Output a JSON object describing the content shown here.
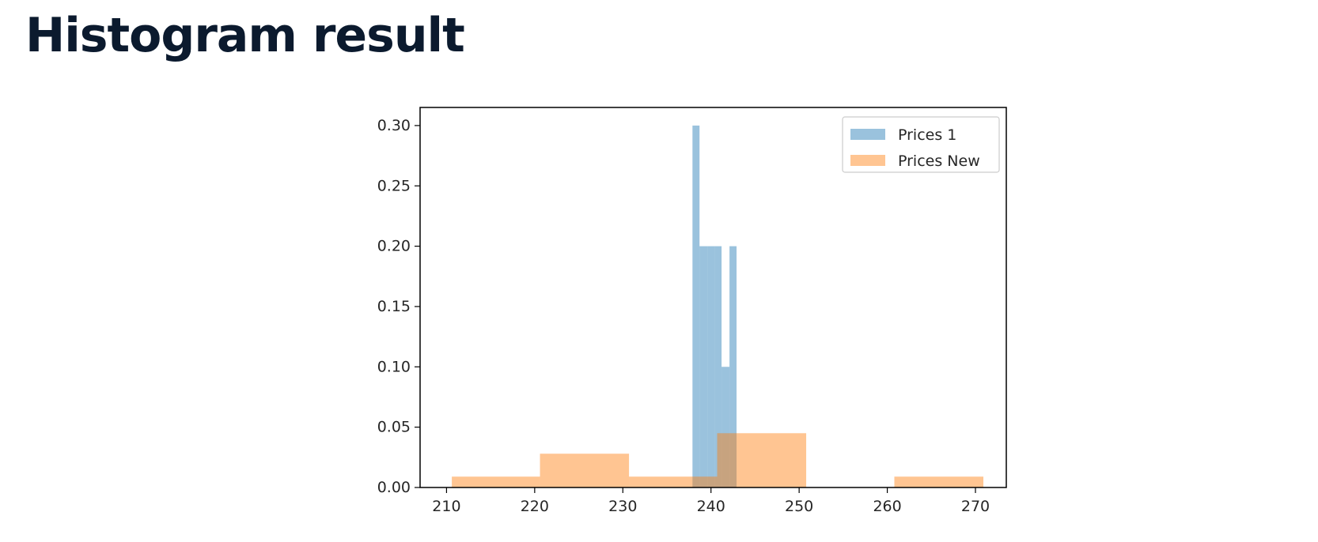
{
  "page": {
    "title": "Histogram result"
  },
  "chart_data": {
    "type": "bar",
    "variant": "histogram",
    "title": "",
    "xlabel": "",
    "ylabel": "",
    "xlim": [
      207,
      273.5
    ],
    "ylim": [
      0,
      0.315
    ],
    "xticks": [
      210,
      220,
      230,
      240,
      250,
      260,
      270
    ],
    "yticks": [
      0.0,
      0.05,
      0.1,
      0.15,
      0.2,
      0.25,
      0.3
    ],
    "ytick_labels": [
      "0.00",
      "0.05",
      "0.10",
      "0.15",
      "0.20",
      "0.25",
      "0.30"
    ],
    "grid": false,
    "legend_position": "top-right",
    "series": [
      {
        "name": "Prices 1",
        "color": "#1f77b4",
        "opacity": 0.45,
        "bins": [
          {
            "x0": 237.9,
            "x1": 238.7,
            "value": 0.3
          },
          {
            "x0": 238.7,
            "x1": 239.6,
            "value": 0.2
          },
          {
            "x0": 239.6,
            "x1": 240.4,
            "value": 0.2
          },
          {
            "x0": 240.4,
            "x1": 241.2,
            "value": 0.2
          },
          {
            "x0": 241.2,
            "x1": 242.1,
            "value": 0.1
          },
          {
            "x0": 242.1,
            "x1": 242.9,
            "value": 0.2
          }
        ]
      },
      {
        "name": "Prices New",
        "color": "#ff7f0e",
        "opacity": 0.45,
        "bins": [
          {
            "x0": 210.6,
            "x1": 220.6,
            "value": 0.009
          },
          {
            "x0": 220.6,
            "x1": 230.7,
            "value": 0.028
          },
          {
            "x0": 230.7,
            "x1": 240.7,
            "value": 0.009
          },
          {
            "x0": 240.7,
            "x1": 250.8,
            "value": 0.045
          },
          {
            "x0": 250.8,
            "x1": 260.8,
            "value": 0.0
          },
          {
            "x0": 260.8,
            "x1": 270.9,
            "value": 0.009
          }
        ]
      }
    ]
  }
}
